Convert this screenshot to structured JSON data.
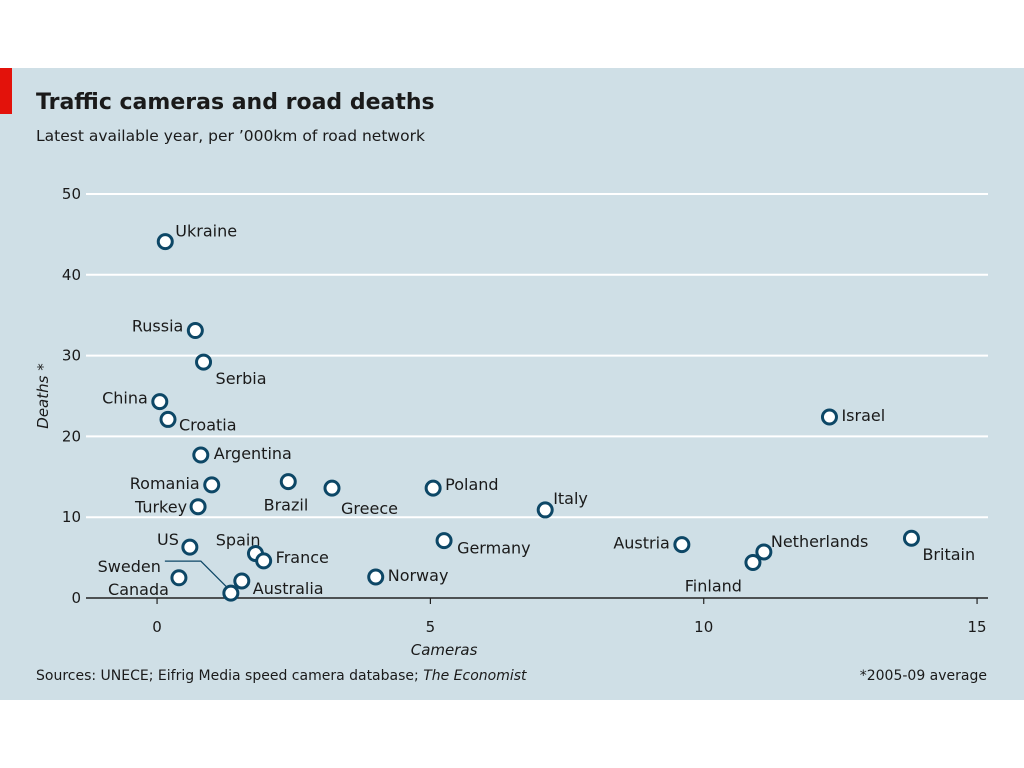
{
  "title": "Traffic cameras and road deaths",
  "subtitle": "Latest available year, per ’000km of road network",
  "source_prefix": "Sources: UNECE; Eifrig Media speed camera database; ",
  "source_italic": "The Economist",
  "footnote": "*2005-09 average",
  "colors": {
    "background": "#cfdfe6",
    "accent": "#e3120b",
    "marker": "#0d4766",
    "grid": "#ffffff",
    "text": "#1a1a1a"
  },
  "chart_data": {
    "type": "scatter",
    "title": "Traffic cameras and road deaths",
    "subtitle": "Latest available year, per ’000km of road network",
    "xlabel": "Cameras",
    "ylabel": "Deaths *",
    "xlim": [
      -1.3,
      15.2
    ],
    "ylim": [
      0,
      50
    ],
    "xticks": [
      0,
      5,
      10,
      15
    ],
    "yticks": [
      0,
      10,
      20,
      30,
      40,
      50
    ],
    "grid": "horizontal",
    "points": [
      {
        "label": "Ukraine",
        "x": 0.15,
        "y": 44.1
      },
      {
        "label": "Russia",
        "x": 0.7,
        "y": 33.1
      },
      {
        "label": "Serbia",
        "x": 0.85,
        "y": 29.2
      },
      {
        "label": "China",
        "x": 0.05,
        "y": 24.3
      },
      {
        "label": "Croatia",
        "x": 0.2,
        "y": 22.1
      },
      {
        "label": "Argentina",
        "x": 0.8,
        "y": 17.7
      },
      {
        "label": "Romania",
        "x": 1.0,
        "y": 14.0
      },
      {
        "label": "Brazil",
        "x": 2.4,
        "y": 14.4
      },
      {
        "label": "Greece",
        "x": 3.2,
        "y": 13.6
      },
      {
        "label": "Poland",
        "x": 5.05,
        "y": 13.6
      },
      {
        "label": "Turkey",
        "x": 0.75,
        "y": 11.3
      },
      {
        "label": "Italy",
        "x": 7.1,
        "y": 10.9
      },
      {
        "label": "US",
        "x": 0.6,
        "y": 6.3
      },
      {
        "label": "Spain",
        "x": 1.8,
        "y": 5.5
      },
      {
        "label": "France",
        "x": 1.95,
        "y": 4.6
      },
      {
        "label": "Germany",
        "x": 5.25,
        "y": 7.1
      },
      {
        "label": "Austria",
        "x": 9.6,
        "y": 6.6
      },
      {
        "label": "Netherlands",
        "x": 11.1,
        "y": 5.7
      },
      {
        "label": "Finland",
        "x": 10.9,
        "y": 4.4
      },
      {
        "label": "Britain",
        "x": 13.8,
        "y": 7.4
      },
      {
        "label": "Israel",
        "x": 12.3,
        "y": 22.4
      },
      {
        "label": "Canada",
        "x": 0.4,
        "y": 2.5
      },
      {
        "label": "Australia",
        "x": 1.55,
        "y": 2.1
      },
      {
        "label": "Norway",
        "x": 4.0,
        "y": 2.6
      },
      {
        "label": "Sweden",
        "x": 1.35,
        "y": 0.6
      }
    ]
  }
}
